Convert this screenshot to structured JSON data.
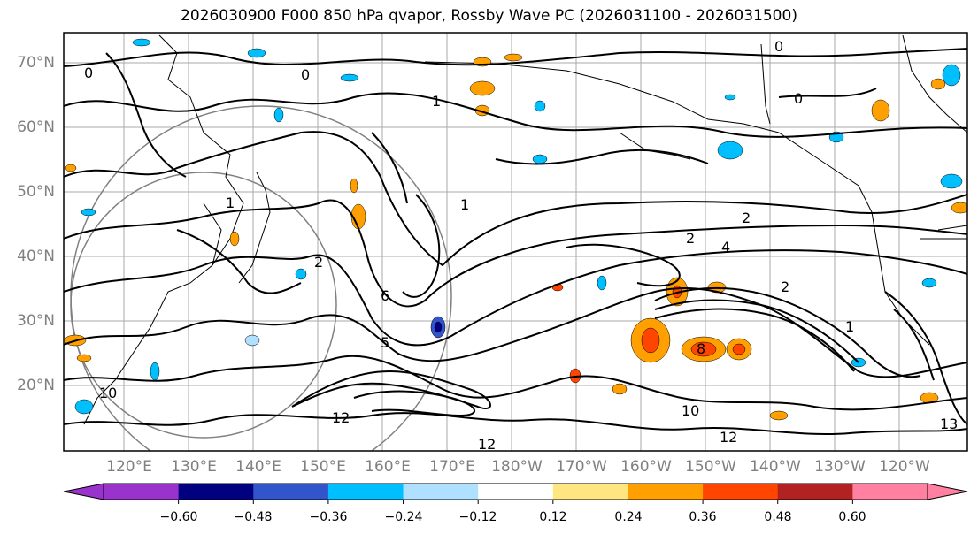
{
  "title": "2026030900 F000 850 hPa qvapor, Rossby Wave PC (2026031100 - 2026031500)",
  "lat_labels": [
    "70°N",
    "60°N",
    "50°N",
    "40°N",
    "30°N",
    "20°N"
  ],
  "lon_labels": [
    "120°E",
    "130°E",
    "140°E",
    "150°E",
    "160°E",
    "170°E",
    "180°W",
    "170°W",
    "160°W",
    "150°W",
    "140°W",
    "130°W",
    "120°W"
  ],
  "colorbar": {
    "colors": [
      "#9933cc",
      "#000080",
      "#3355cc",
      "#00bfff",
      "#b0e0ff",
      "#ffffff",
      "#ffe680",
      "#ffa000",
      "#ff4500",
      "#b22222",
      "#ff80a0"
    ],
    "under_color": "#9933cc",
    "over_color": "#ff80a0",
    "tick_labels": [
      "−0.60",
      "−0.48",
      "−0.36",
      "−0.24",
      "−0.12",
      "0.12",
      "0.24",
      "0.36",
      "0.48",
      "0.60"
    ]
  },
  "contour_labels": [
    "0",
    "0",
    "0",
    "0",
    "1",
    "1",
    "1",
    "1",
    "2",
    "2",
    "2",
    "2",
    "4",
    "5",
    "6",
    "8",
    "10",
    "10",
    "12",
    "12",
    "12",
    "13"
  ]
}
